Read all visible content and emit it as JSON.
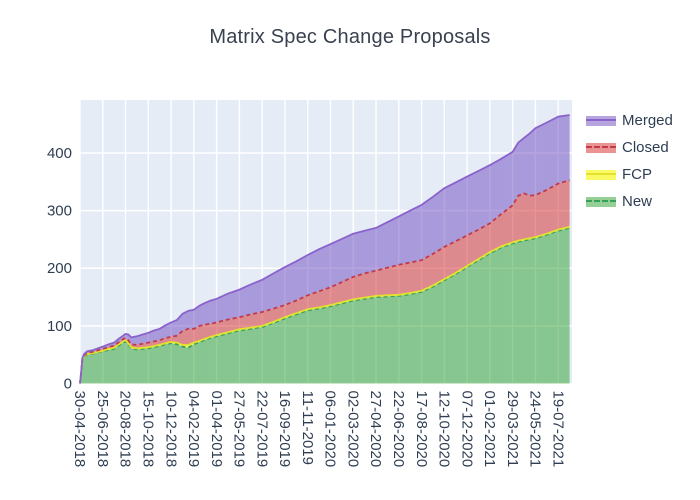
{
  "chart_data": {
    "type": "area",
    "stacked": true,
    "title": "Matrix Spec Change Proposals",
    "plot_bg": "#e5ecf6",
    "grid_color": "#ffffff",
    "grid": true,
    "legend_position": "right-top",
    "ylim": [
      0,
      492
    ],
    "y_ticks": [
      0,
      100,
      200,
      300,
      400
    ],
    "x_range_days": [
      0,
      1210
    ],
    "x_tick_days": [
      0,
      56,
      112,
      168,
      224,
      280,
      336,
      392,
      448,
      504,
      560,
      616,
      672,
      728,
      784,
      840,
      896,
      952,
      1008,
      1064,
      1120,
      1176
    ],
    "x_tick_labels": [
      "30-04-2018",
      "25-06-2018",
      "20-08-2018",
      "15-10-2018",
      "10-12-2018",
      "04-02-2019",
      "01-04-2019",
      "27-05-2019",
      "22-07-2019",
      "16-09-2019",
      "11-11-2019",
      "06-01-2020",
      "02-03-2020",
      "27-04-2020",
      "22-06-2020",
      "17-08-2020",
      "12-10-2020",
      "07-12-2020",
      "01-02-2021",
      "29-03-2021",
      "24-05-2021",
      "19-07-2021"
    ],
    "x_days": [
      0,
      3,
      6,
      10,
      18,
      32,
      56,
      70,
      84,
      96,
      106,
      112,
      119,
      126,
      140,
      154,
      168,
      182,
      196,
      210,
      224,
      238,
      252,
      266,
      280,
      294,
      308,
      322,
      336,
      364,
      392,
      420,
      448,
      476,
      504,
      532,
      560,
      588,
      616,
      644,
      672,
      700,
      728,
      756,
      784,
      812,
      840,
      868,
      896,
      924,
      952,
      980,
      1008,
      1036,
      1064,
      1078,
      1092,
      1106,
      1120,
      1148,
      1176,
      1204
    ],
    "series": [
      {
        "name": "New",
        "fill": "rgba(44,160,44,0.5)",
        "line": "#35a058",
        "dash": "4 3",
        "values": [
          0,
          20,
          42,
          47,
          50,
          52,
          56,
          58,
          60,
          66,
          71,
          73,
          68,
          61,
          59,
          60,
          61,
          63,
          65,
          68,
          70,
          68,
          64,
          62,
          68,
          72,
          76,
          79,
          82,
          87,
          92,
          95,
          98,
          105,
          113,
          120,
          127,
          130,
          134,
          139,
          144,
          147,
          150,
          151,
          152,
          155,
          159,
          168,
          179,
          190,
          202,
          214,
          226,
          236,
          243,
          246,
          248,
          250,
          252,
          258,
          265,
          270
        ]
      },
      {
        "name": "FCP",
        "fill": "rgba(246,246,40,0.72)",
        "line": "#e2e22e",
        "dash": null,
        "values": [
          0,
          0,
          0,
          1,
          1,
          1,
          1,
          2,
          2,
          2,
          2,
          2,
          2,
          2,
          2,
          2,
          2,
          2,
          2,
          2,
          2,
          3,
          3,
          5,
          3,
          2,
          2,
          2,
          2,
          2,
          2,
          2,
          2,
          2,
          2,
          2,
          2,
          2,
          2,
          2,
          2,
          2,
          2,
          2,
          2,
          2,
          2,
          2,
          2,
          2,
          2,
          2,
          2,
          2,
          2,
          2,
          2,
          2,
          2,
          2,
          2,
          2
        ]
      },
      {
        "name": "Closed",
        "fill": "rgba(214,39,40,0.5)",
        "line": "#c23a48",
        "dash": "4 3",
        "values": [
          0,
          0,
          1,
          1,
          2,
          2,
          3,
          3,
          4,
          4,
          4,
          4,
          5,
          5,
          6,
          7,
          8,
          8,
          8,
          9,
          9,
          12,
          24,
          28,
          24,
          26,
          24,
          23,
          22,
          22,
          21,
          23,
          24,
          23,
          21,
          22,
          24,
          28,
          31,
          35,
          39,
          42,
          44,
          48,
          52,
          53,
          53,
          55,
          56,
          55,
          53,
          51,
          50,
          56,
          64,
          78,
          80,
          74,
          73,
          76,
          80,
          81
        ]
      },
      {
        "name": "Merged",
        "fill": "rgba(109,74,192,0.5)",
        "line": "#8a62cc",
        "dash": null,
        "values": [
          0,
          0,
          1,
          2,
          3,
          3,
          4,
          5,
          5,
          6,
          6,
          7,
          10,
          12,
          15,
          16,
          17,
          19,
          20,
          22,
          25,
          27,
          30,
          31,
          33,
          35,
          38,
          40,
          41,
          45,
          48,
          52,
          56,
          61,
          66,
          68,
          70,
          73,
          75,
          75,
          75,
          74,
          74,
          79,
          84,
          90,
          96,
          99,
          102,
          102,
          102,
          102,
          101,
          96,
          93,
          92,
          96,
          108,
          116,
          117,
          116,
          113
        ]
      }
    ],
    "legend_order": [
      "Merged",
      "Closed",
      "FCP",
      "New"
    ]
  }
}
